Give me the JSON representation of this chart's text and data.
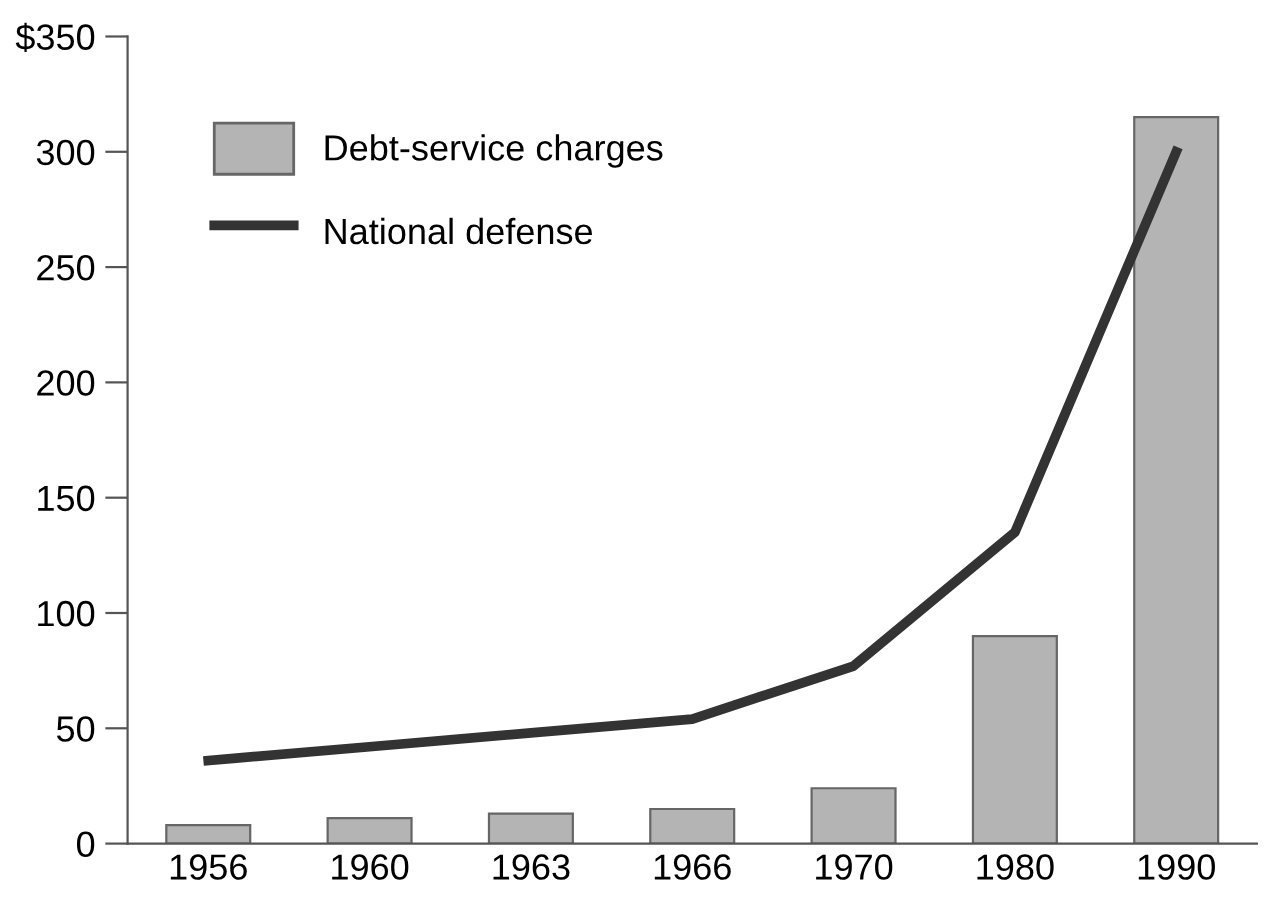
{
  "chart_data": {
    "type": "bar",
    "categories": [
      "1956",
      "1960",
      "1963",
      "1966",
      "1970",
      "1980",
      "1990"
    ],
    "series": [
      {
        "name": "Debt-service charges",
        "color": "#b4b4b4",
        "values": [
          8,
          11,
          13,
          15,
          24,
          90,
          315
        ]
      },
      {
        "name": "National defense",
        "type": "line",
        "color": "#333333",
        "values": [
          36,
          42,
          48,
          54,
          77,
          135,
          300
        ]
      }
    ],
    "ylim": [
      0,
      350
    ],
    "yticks": [
      {
        "value": 0,
        "label": "0"
      },
      {
        "value": 50,
        "label": "50"
      },
      {
        "value": 100,
        "label": "100"
      },
      {
        "value": 150,
        "label": "150"
      },
      {
        "value": 200,
        "label": "200"
      },
      {
        "value": 250,
        "label": "250"
      },
      {
        "value": 300,
        "label": "300"
      },
      {
        "value": 350,
        "label": "$350"
      }
    ],
    "grid": false,
    "legend": "top left"
  }
}
